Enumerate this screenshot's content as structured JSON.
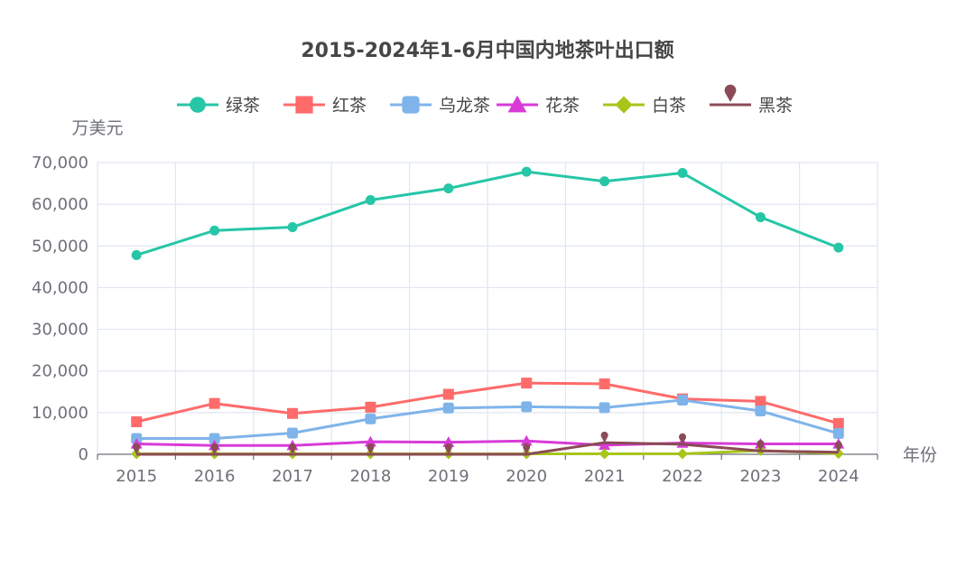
{
  "chart_data": {
    "type": "line",
    "title": "2015-2024年1-6月中国内地茶叶出口额",
    "xlabel": "年份",
    "ylabel": "万美元",
    "categories": [
      "2015",
      "2016",
      "2017",
      "2018",
      "2019",
      "2020",
      "2021",
      "2022",
      "2023",
      "2024"
    ],
    "ylim": [
      0,
      70000
    ],
    "yticks": [
      0,
      10000,
      20000,
      30000,
      40000,
      50000,
      60000,
      70000
    ],
    "ytick_labels": [
      "0",
      "10,000",
      "20,000",
      "30,000",
      "40,000",
      "50,000",
      "60,000",
      "70,000"
    ],
    "grid": true,
    "legend_position": "top-center",
    "series": [
      {
        "name": "绿茶",
        "color": "#26c6a6",
        "marker": "circle",
        "values": [
          47800,
          53700,
          54500,
          61000,
          63800,
          67800,
          65500,
          67500,
          56900,
          49600
        ]
      },
      {
        "name": "红茶",
        "color": "#ff6b6b",
        "marker": "square",
        "values": [
          7800,
          12200,
          9800,
          11300,
          14400,
          17100,
          16900,
          13300,
          12700,
          7400
        ]
      },
      {
        "name": "乌龙茶",
        "color": "#7fb4ea",
        "marker": "roundRect",
        "values": [
          3800,
          3800,
          5100,
          8500,
          11100,
          11400,
          11200,
          13000,
          10400,
          5000
        ]
      },
      {
        "name": "花茶",
        "color": "#d83bd8",
        "marker": "triangle",
        "values": [
          2500,
          2100,
          2100,
          3000,
          2900,
          3200,
          2200,
          2700,
          2500,
          2500
        ]
      },
      {
        "name": "白茶",
        "color": "#a8c51a",
        "marker": "diamond",
        "values": [
          100,
          100,
          100,
          100,
          100,
          100,
          100,
          100,
          900,
          200
        ]
      },
      {
        "name": "黑茶",
        "color": "#8b4b56",
        "marker": "pin",
        "values": [
          0,
          0,
          0,
          0,
          0,
          0,
          2800,
          2400,
          800,
          500
        ]
      }
    ]
  }
}
